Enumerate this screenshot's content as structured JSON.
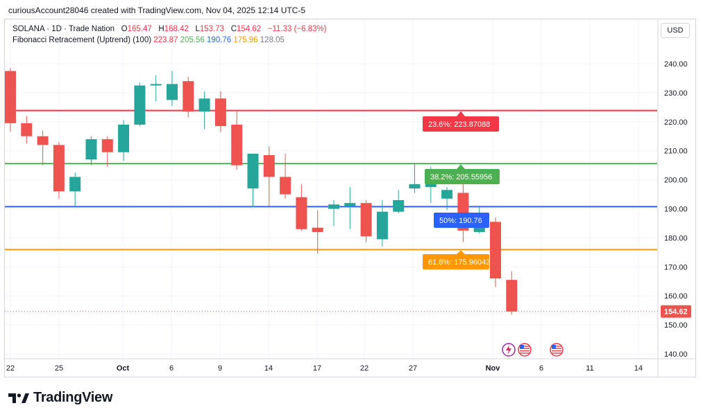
{
  "caption": "curiousAccount28046 created with TradingView.com, Nov 04, 2025 12:14 UTC-5",
  "legend": {
    "symbol": "SOLANA · 1D · Trade Nation",
    "o_label": "O",
    "o_value": "165.47",
    "h_label": "H",
    "h_value": "168.42",
    "l_label": "L",
    "l_value": "153.73",
    "c_label": "C",
    "c_value": "154.62",
    "change": "−11.33 (−6.83%)",
    "fib_title": "Fibonacci Retracement (Uptrend) (100)",
    "fib_values": [
      {
        "text": "223.87",
        "color": "#f23645"
      },
      {
        "text": "205.56",
        "color": "#4caf50"
      },
      {
        "text": "190.76",
        "color": "#2962ff"
      },
      {
        "text": "175.96",
        "color": "#ff9800"
      },
      {
        "text": "128.05",
        "color": "#787b86"
      }
    ]
  },
  "currency": "USD",
  "logo_text": "TradingView",
  "colors": {
    "up": "#26a69a",
    "down": "#ef5350",
    "grid": "#f0f3fa",
    "axis_text": "#131722"
  },
  "chart_data": {
    "type": "candlestick",
    "y_ticks": [
      "240.00",
      "230.00",
      "220.00",
      "210.00",
      "200.00",
      "190.00",
      "180.00",
      "170.00",
      "160.00",
      "150.00",
      "140.00"
    ],
    "x_ticks": [
      "22",
      "25",
      "Oct",
      "6",
      "9",
      "14",
      "17",
      "22",
      "27",
      "Nov",
      "6",
      "11",
      "14"
    ],
    "last_price": {
      "value": 154.62,
      "label": "154.62"
    },
    "fib_levels": [
      {
        "value": 223.87,
        "label": "23.6%: 223.87088",
        "color": "#f23645"
      },
      {
        "value": 205.56,
        "label": "38.2%: 205.55956",
        "color": "#4caf50"
      },
      {
        "value": 190.76,
        "label": "50%: 190.76",
        "color": "#2962ff"
      },
      {
        "value": 175.96,
        "label": "61.8%: 175.96042",
        "color": "#ff9800"
      }
    ],
    "candles": [
      {
        "o": 237.5,
        "h": 238.5,
        "l": 216.5,
        "c": 219.5
      },
      {
        "o": 219.5,
        "h": 222.0,
        "l": 212.5,
        "c": 215.0
      },
      {
        "o": 215.0,
        "h": 217.0,
        "l": 205.0,
        "c": 212.0
      },
      {
        "o": 212.0,
        "h": 213.0,
        "l": 193.5,
        "c": 196.0
      },
      {
        "o": 196.0,
        "h": 202.5,
        "l": 191.0,
        "c": 201.0
      },
      {
        "o": 207.0,
        "h": 215.0,
        "l": 205.0,
        "c": 214.0
      },
      {
        "o": 214.0,
        "h": 215.0,
        "l": 204.5,
        "c": 209.5
      },
      {
        "o": 209.5,
        "h": 220.5,
        "l": 206.5,
        "c": 219.0
      },
      {
        "o": 219.0,
        "h": 233.5,
        "l": 218.5,
        "c": 232.5
      },
      {
        "o": 232.5,
        "h": 236.0,
        "l": 227.0,
        "c": 233.0
      },
      {
        "o": 227.5,
        "h": 237.5,
        "l": 225.5,
        "c": 233.0
      },
      {
        "o": 234.0,
        "h": 235.5,
        "l": 221.5,
        "c": 223.5
      },
      {
        "o": 223.5,
        "h": 230.5,
        "l": 217.5,
        "c": 228.0
      },
      {
        "o": 228.0,
        "h": 230.5,
        "l": 216.5,
        "c": 218.5
      },
      {
        "o": 219.0,
        "h": 224.0,
        "l": 203.5,
        "c": 205.0
      },
      {
        "o": 197.0,
        "h": 209.0,
        "l": 190.5,
        "c": 209.0
      },
      {
        "o": 208.5,
        "h": 211.5,
        "l": 191.0,
        "c": 201.0
      },
      {
        "o": 201.0,
        "h": 209.0,
        "l": 193.5,
        "c": 195.0
      },
      {
        "o": 194.0,
        "h": 198.5,
        "l": 182.5,
        "c": 183.0
      },
      {
        "o": 183.5,
        "h": 189.5,
        "l": 174.5,
        "c": 182.0
      },
      {
        "o": 190.0,
        "h": 193.0,
        "l": 184.0,
        "c": 191.5
      },
      {
        "o": 191.0,
        "h": 197.5,
        "l": 183.0,
        "c": 192.0
      },
      {
        "o": 192.0,
        "h": 193.0,
        "l": 178.5,
        "c": 180.5
      },
      {
        "o": 179.5,
        "h": 193.0,
        "l": 177.0,
        "c": 189.0
      },
      {
        "o": 189.0,
        "h": 196.5,
        "l": 188.5,
        "c": 193.0
      },
      {
        "o": 197.0,
        "h": 205.5,
        "l": 195.5,
        "c": 198.5
      },
      {
        "o": 197.5,
        "h": 204.5,
        "l": 192.0,
        "c": 202.0
      },
      {
        "o": 193.5,
        "h": 197.5,
        "l": 189.5,
        "c": 196.5
      },
      {
        "o": 195.5,
        "h": 200.0,
        "l": 178.5,
        "c": 182.5
      },
      {
        "o": 182.0,
        "h": 190.5,
        "l": 181.5,
        "c": 188.5
      },
      {
        "o": 185.5,
        "h": 187.0,
        "l": 163.0,
        "c": 166.0
      },
      {
        "o": 165.5,
        "h": 168.5,
        "l": 153.5,
        "c": 154.6
      }
    ]
  }
}
